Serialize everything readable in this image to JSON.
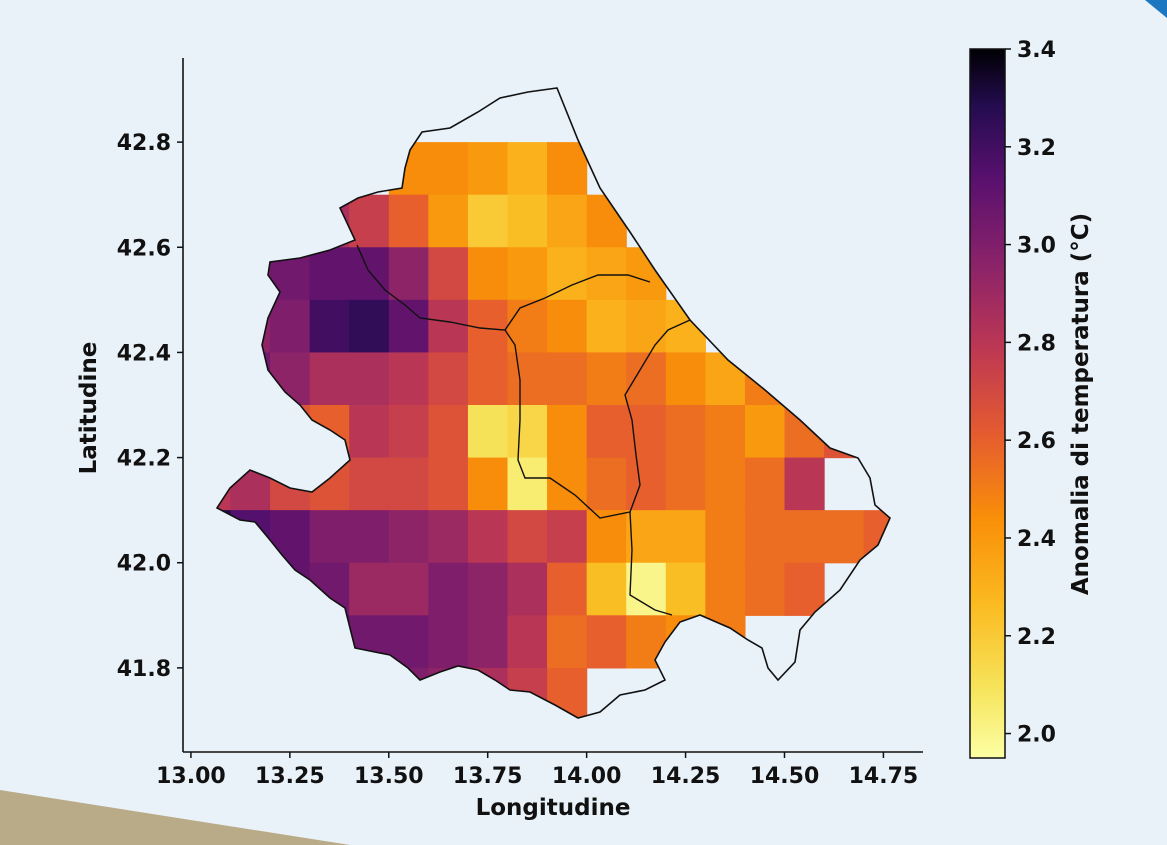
{
  "chart_data": {
    "type": "heatmap",
    "title": "",
    "xlabel": "Longitudine",
    "ylabel": "Latitudine",
    "xlim": [
      12.98,
      14.85
    ],
    "ylim": [
      41.64,
      42.96
    ],
    "x_ticks": [
      "13.00",
      "13.25",
      "13.50",
      "13.75",
      "14.00",
      "14.25",
      "14.50",
      "14.75"
    ],
    "y_ticks": [
      "41.8",
      "42.0",
      "42.2",
      "42.4",
      "42.6",
      "42.8"
    ],
    "colorbar": {
      "label": "Anomalia di temperatura (°C)",
      "colormap": "inferno_r",
      "range": [
        1.95,
        3.4
      ],
      "ticks": [
        "2.0",
        "2.2",
        "2.4",
        "2.6",
        "2.8",
        "3.0",
        "3.2",
        "3.4"
      ]
    },
    "grid": {
      "lon0": 13.0,
      "lat_top": 42.9,
      "step": 0.1,
      "cols": 18,
      "rows": 12,
      "values": [
        [
          null,
          null,
          null,
          null,
          null,
          null,
          null,
          null,
          null,
          null,
          null,
          null,
          null,
          null,
          null,
          null,
          null,
          null
        ],
        [
          null,
          null,
          null,
          null,
          null,
          2.45,
          2.45,
          2.4,
          2.3,
          2.45,
          null,
          null,
          null,
          null,
          null,
          null,
          null,
          null
        ],
        [
          null,
          null,
          null,
          2.85,
          2.75,
          2.6,
          2.4,
          2.2,
          2.25,
          2.35,
          2.45,
          null,
          null,
          null,
          null,
          null,
          null,
          null
        ],
        [
          2.95,
          3.0,
          3.05,
          3.1,
          3.1,
          2.95,
          2.7,
          2.45,
          2.4,
          2.3,
          2.35,
          2.4,
          null,
          null,
          null,
          null,
          null,
          null
        ],
        [
          2.9,
          2.95,
          3.0,
          3.2,
          3.25,
          3.1,
          2.8,
          2.6,
          2.5,
          2.45,
          2.3,
          2.35,
          2.3,
          null,
          null,
          null,
          null,
          null
        ],
        [
          3.0,
          3.05,
          2.95,
          2.85,
          2.85,
          2.8,
          2.7,
          2.6,
          2.55,
          2.55,
          2.5,
          2.55,
          2.45,
          2.35,
          2.5,
          null,
          null,
          null
        ],
        [
          2.95,
          2.9,
          2.65,
          2.6,
          2.8,
          2.75,
          2.65,
          2.1,
          2.15,
          2.45,
          2.6,
          2.6,
          2.55,
          2.5,
          2.4,
          2.55,
          2.65,
          null
        ],
        [
          2.8,
          2.85,
          2.7,
          2.65,
          2.7,
          2.7,
          2.65,
          2.45,
          2.05,
          2.45,
          2.55,
          2.6,
          2.55,
          2.5,
          2.55,
          2.8,
          null,
          null
        ],
        [
          3.3,
          3.15,
          3.1,
          3.0,
          3.0,
          2.95,
          2.9,
          2.8,
          2.7,
          2.75,
          2.45,
          2.35,
          2.35,
          2.5,
          2.55,
          2.55,
          2.55,
          2.6
        ],
        [
          null,
          3.1,
          3.1,
          3.05,
          2.9,
          2.9,
          3.0,
          2.95,
          2.85,
          2.6,
          2.25,
          2.0,
          2.25,
          2.5,
          2.55,
          2.6,
          null,
          null
        ],
        [
          null,
          null,
          3.05,
          3.15,
          3.05,
          3.05,
          3.0,
          2.95,
          2.8,
          2.55,
          2.6,
          2.5,
          2.45,
          2.5,
          null,
          null,
          null,
          null
        ],
        [
          null,
          null,
          null,
          3.2,
          3.1,
          3.0,
          2.95,
          2.85,
          2.75,
          2.6,
          null,
          null,
          null,
          null,
          null,
          null,
          null,
          null
        ]
      ]
    }
  }
}
